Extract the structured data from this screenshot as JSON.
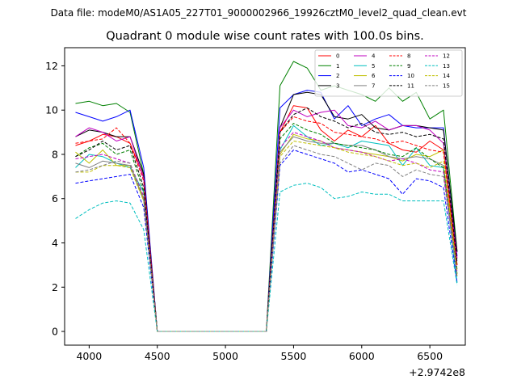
{
  "header": {
    "datafile": "Data file: modeM0/AS1A05_227T01_9000002966_19926cztM0_level2_quad_clean.evt"
  },
  "chart_data": {
    "type": "line",
    "title": "Quadrant 0 module wise count rates with 100.0s bins.",
    "xlabel": "",
    "ylabel": "",
    "x_offset_label": "+2.9742e8",
    "xlim": [
      3820,
      6760
    ],
    "ylim": [
      -0.62,
      12.82
    ],
    "xticks": [
      4000,
      4500,
      5000,
      5500,
      6000,
      6500
    ],
    "yticks": [
      0,
      2,
      4,
      6,
      8,
      10,
      12
    ],
    "legend_position": "top-right",
    "x": [
      3900,
      4000,
      4100,
      4200,
      4300,
      4400,
      4500,
      4600,
      4700,
      4800,
      4900,
      5000,
      5100,
      5200,
      5300,
      5400,
      5500,
      5600,
      5700,
      5800,
      5900,
      6000,
      6100,
      6200,
      6300,
      6400,
      6500,
      6600,
      6700
    ],
    "series": [
      {
        "name": "0",
        "color": "#ff0000",
        "dash": "solid",
        "values": [
          8.4,
          8.6,
          8.9,
          8.8,
          8.5,
          7.0,
          0,
          0,
          0,
          0,
          0,
          0,
          0,
          0,
          0,
          9.0,
          10.2,
          10.1,
          9.1,
          8.6,
          9.1,
          8.8,
          9.3,
          8.5,
          8.2,
          8.1,
          8.6,
          8.2,
          3.0
        ]
      },
      {
        "name": "1",
        "color": "#008000",
        "dash": "solid",
        "values": [
          10.3,
          10.4,
          10.2,
          10.3,
          9.9,
          7.1,
          0,
          0,
          0,
          0,
          0,
          0,
          0,
          0,
          0,
          11.1,
          12.2,
          11.9,
          10.9,
          11.1,
          10.9,
          10.7,
          10.4,
          11.0,
          10.4,
          10.8,
          9.6,
          10.0,
          3.6
        ]
      },
      {
        "name": "2",
        "color": "#0000ff",
        "dash": "solid",
        "values": [
          9.9,
          9.7,
          9.5,
          9.7,
          10.0,
          7.4,
          0,
          0,
          0,
          0,
          0,
          0,
          0,
          0,
          0,
          10.1,
          10.7,
          10.9,
          10.8,
          9.6,
          10.2,
          9.3,
          9.6,
          9.8,
          9.3,
          9.2,
          9.2,
          9.2,
          3.4
        ]
      },
      {
        "name": "3",
        "color": "#000000",
        "dash": "solid",
        "values": [
          8.8,
          9.1,
          9.0,
          8.8,
          8.8,
          7.1,
          0,
          0,
          0,
          0,
          0,
          0,
          0,
          0,
          0,
          9.2,
          10.7,
          10.8,
          10.7,
          9.7,
          9.6,
          9.8,
          9.2,
          9.1,
          9.3,
          9.3,
          9.2,
          9.1,
          3.6
        ]
      },
      {
        "name": "4",
        "color": "#bf00bf",
        "dash": "solid",
        "values": [
          8.8,
          9.2,
          9.0,
          8.6,
          8.8,
          6.9,
          0,
          0,
          0,
          0,
          0,
          0,
          0,
          0,
          0,
          9.2,
          10.0,
          9.7,
          9.9,
          10.0,
          9.3,
          9.2,
          9.5,
          9.1,
          9.3,
          9.3,
          9.1,
          8.5,
          3.3
        ]
      },
      {
        "name": "5",
        "color": "#00bfbf",
        "dash": "solid",
        "values": [
          7.4,
          8.0,
          7.9,
          7.6,
          7.4,
          6.3,
          0,
          0,
          0,
          0,
          0,
          0,
          0,
          0,
          0,
          8.2,
          9.3,
          8.8,
          8.4,
          8.5,
          8.3,
          8.6,
          8.5,
          8.4,
          7.5,
          8.3,
          7.5,
          7.4,
          2.2
        ]
      },
      {
        "name": "6",
        "color": "#bfbf00",
        "dash": "solid",
        "values": [
          8.1,
          7.6,
          8.2,
          7.5,
          7.5,
          6.0,
          0,
          0,
          0,
          0,
          0,
          0,
          0,
          0,
          0,
          8.0,
          8.9,
          8.7,
          8.6,
          8.3,
          8.2,
          8.1,
          8.0,
          7.9,
          7.7,
          8.0,
          7.9,
          8.2,
          2.5
        ]
      },
      {
        "name": "7",
        "color": "#808080",
        "dash": "solid",
        "values": [
          7.6,
          7.4,
          7.7,
          7.6,
          7.5,
          5.9,
          0,
          0,
          0,
          0,
          0,
          0,
          0,
          0,
          0,
          8.1,
          8.8,
          8.6,
          8.5,
          8.5,
          8.4,
          8.4,
          8.2,
          7.9,
          7.8,
          7.9,
          7.8,
          7.5,
          2.6
        ]
      },
      {
        "name": "8",
        "color": "#ff0000",
        "dash": "dashed",
        "values": [
          8.5,
          8.6,
          8.7,
          9.2,
          8.5,
          6.8,
          0,
          0,
          0,
          0,
          0,
          0,
          0,
          0,
          0,
          9.0,
          9.7,
          9.5,
          9.4,
          9.0,
          8.9,
          8.8,
          8.7,
          8.5,
          8.6,
          8.4,
          8.2,
          8.1,
          3.0
        ]
      },
      {
        "name": "9",
        "color": "#008000",
        "dash": "dashed",
        "values": [
          7.9,
          8.3,
          8.5,
          8.0,
          8.2,
          6.3,
          0,
          0,
          0,
          0,
          0,
          0,
          0,
          0,
          0,
          8.7,
          9.4,
          9.1,
          8.9,
          8.5,
          8.4,
          8.3,
          8.2,
          8.0,
          7.9,
          8.3,
          7.8,
          7.4,
          2.8
        ]
      },
      {
        "name": "10",
        "color": "#0000ff",
        "dash": "dashed",
        "values": [
          6.7,
          6.8,
          6.9,
          7.0,
          7.1,
          5.6,
          0,
          0,
          0,
          0,
          0,
          0,
          0,
          0,
          0,
          7.5,
          8.2,
          8.0,
          7.8,
          7.6,
          7.2,
          7.3,
          7.1,
          6.9,
          6.2,
          6.9,
          6.8,
          6.5,
          2.2
        ]
      },
      {
        "name": "11",
        "color": "#000000",
        "dash": "dashed",
        "values": [
          7.9,
          8.2,
          8.6,
          8.2,
          8.4,
          6.5,
          0,
          0,
          0,
          0,
          0,
          0,
          0,
          0,
          0,
          9.0,
          9.8,
          10.1,
          9.7,
          9.5,
          9.2,
          9.4,
          9.0,
          8.9,
          9.0,
          8.8,
          8.9,
          8.7,
          3.1
        ]
      },
      {
        "name": "12",
        "color": "#bf00bf",
        "dash": "dashed",
        "values": [
          7.8,
          7.9,
          8.0,
          7.8,
          7.6,
          6.1,
          0,
          0,
          0,
          0,
          0,
          0,
          0,
          0,
          0,
          8.3,
          9.0,
          8.8,
          8.6,
          8.3,
          8.2,
          8.1,
          7.9,
          7.7,
          7.8,
          7.6,
          7.3,
          7.2,
          2.7
        ]
      },
      {
        "name": "13",
        "color": "#00bfbf",
        "dash": "dashed",
        "values": [
          5.1,
          5.5,
          5.8,
          5.9,
          5.8,
          4.6,
          0,
          0,
          0,
          0,
          0,
          0,
          0,
          0,
          0,
          6.3,
          6.6,
          6.7,
          6.5,
          6.0,
          6.1,
          6.3,
          6.2,
          6.2,
          5.9,
          5.9,
          5.9,
          5.9,
          2.1
        ]
      },
      {
        "name": "14",
        "color": "#bfbf00",
        "dash": "dashed",
        "values": [
          7.2,
          7.2,
          7.5,
          7.5,
          7.4,
          5.9,
          0,
          0,
          0,
          0,
          0,
          0,
          0,
          0,
          0,
          7.9,
          8.6,
          8.5,
          8.4,
          8.3,
          8.1,
          8.0,
          7.9,
          7.7,
          7.5,
          7.6,
          7.4,
          7.7,
          2.6
        ]
      },
      {
        "name": "15",
        "color": "#808080",
        "dash": "dashed",
        "values": [
          7.2,
          7.3,
          7.5,
          7.7,
          7.6,
          6.0,
          0,
          0,
          0,
          0,
          0,
          0,
          0,
          0,
          0,
          7.6,
          8.4,
          8.2,
          8.0,
          7.9,
          7.6,
          7.3,
          7.6,
          7.5,
          7.0,
          7.3,
          7.1,
          7.0,
          2.5
        ]
      }
    ]
  }
}
